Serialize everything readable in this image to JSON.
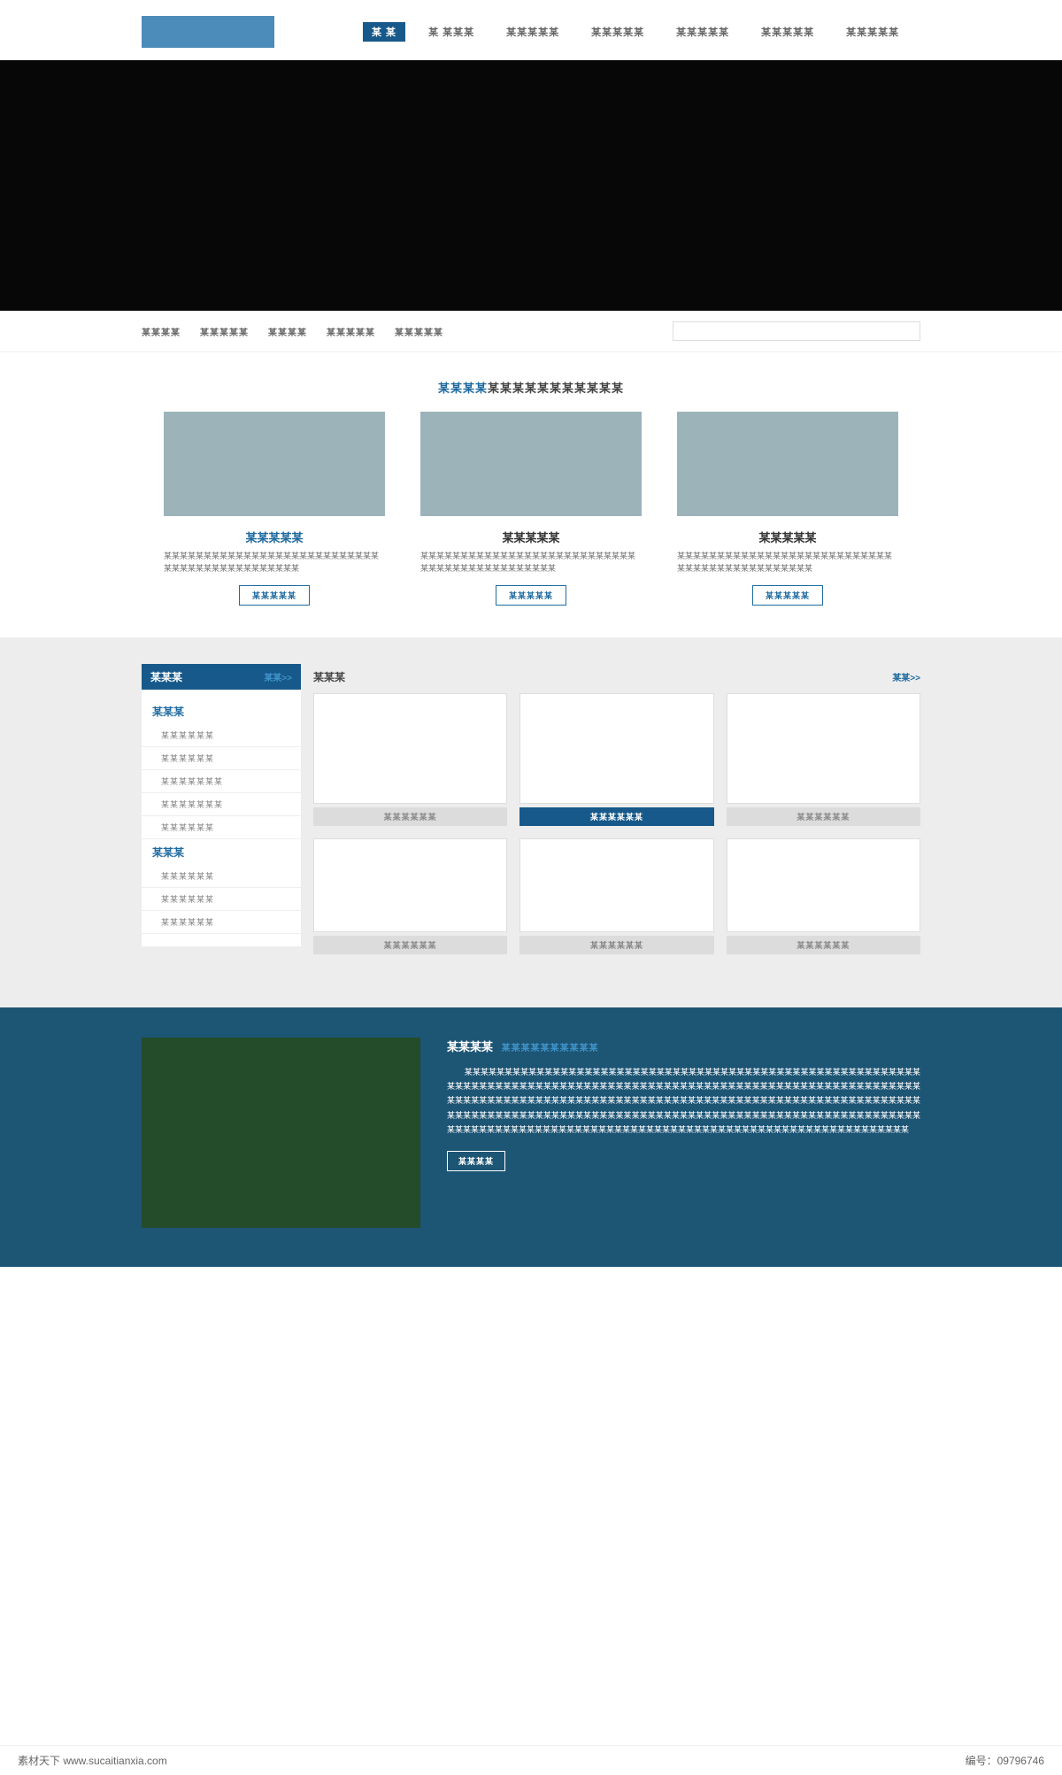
{
  "colors": {
    "logo_bg": "#4b8cba",
    "nav_active_bg": "#17598a",
    "hero_bg": "#070707",
    "accent": "#1e6aa0",
    "card_img_bg": "#9db3ba",
    "products_bg": "#ededed",
    "grid_label_bg": "#dcdcdc",
    "about_bg": "#1d5575",
    "about_img_bg": "#244c2b",
    "sub_accent": "#3f93c9"
  },
  "nav": {
    "items": [
      {
        "label": "某 某",
        "active": true
      },
      {
        "label": "某 某某某",
        "active": false
      },
      {
        "label": "某某某某某",
        "active": false
      },
      {
        "label": "某某某某某",
        "active": false
      },
      {
        "label": "某某某某某",
        "active": false
      },
      {
        "label": "某某某某某",
        "active": false
      },
      {
        "label": "某某某某某",
        "active": false
      }
    ]
  },
  "subnav": {
    "items": [
      {
        "label": "某某某某"
      },
      {
        "label": "某某某某某"
      },
      {
        "label": "某某某某"
      },
      {
        "label": "某某某某某"
      },
      {
        "label": "某某某某某"
      }
    ],
    "search_placeholder": ""
  },
  "section1": {
    "title_accent": "某某某某",
    "title_rest": "某某某某某某某某某某某",
    "cards": [
      {
        "title": "某某某某某",
        "link": true,
        "desc": "某某某某某某某某某某某某某某某某某某某某某某某某某某某某某某某某某某某某某某某某某某某某",
        "btn": "某某某某某"
      },
      {
        "title": "某某某某某",
        "link": false,
        "desc": "某某某某某某某某某某某某某某某某某某某某某某某某某某某某某某某某某某某某某某某某某某某某",
        "btn": "某某某某某"
      },
      {
        "title": "某某某某某",
        "link": false,
        "desc": "某某某某某某某某某某某某某某某某某某某某某某某某某某某某某某某某某某某某某某某某某某某某",
        "btn": "某某某某某"
      }
    ]
  },
  "products": {
    "sidebar": {
      "head_title": "某某某",
      "head_more": "某某>>",
      "groups": [
        {
          "cat": "某某某",
          "items": [
            "某某某某某某",
            "某某某某某某",
            "某某某某某某某",
            "某某某某某某某",
            "某某某某某某"
          ]
        },
        {
          "cat": "某某某",
          "items": [
            "某某某某某某",
            "某某某某某某",
            "某某某某某某"
          ]
        }
      ]
    },
    "grid": {
      "head_title": "某某某",
      "head_more": "某某>>",
      "items": [
        {
          "label": "某某某某某某",
          "active": false
        },
        {
          "label": "某某某某某某",
          "active": true
        },
        {
          "label": "某某某某某某",
          "active": false
        },
        {
          "label": "某某某某某某",
          "active": false
        },
        {
          "label": "某某某某某某",
          "active": false
        },
        {
          "label": "某某某某某某",
          "active": false
        }
      ]
    }
  },
  "about": {
    "title_main": "某某某某",
    "title_sub": "某某某某某某某某某某",
    "text": "某某某某某某某某某某某某某某某某某某某某某某某某某某某某某某某某某某某某某某某某某某某某某某某某某某某某某某某某某某某某某某某某某某某某某某某某某某某某某某某某某某某某某某某某某某某某某某某某某某某某某某某某某某某某某某某某某某某某某某某某某某某某某某某某某某某某某某某某某某某某某某某某某某某某某某某某某某某某某某某某某某某某某某某某某某某某某某某某某某某某某某某某某某某某某某某某某某某某某某某某某某某某某某某某某某某某某某某某某某某某某某某某某某某某某某某某某某某某某某某某某某某某某某某某某某某某某某某某某某某某某某某某某某某某某某某某某某某某某某某某某某某某某某某某某某某某",
    "btn": "某某某某"
  },
  "footer": {
    "left": "素材天下 www.sucaitianxia.com",
    "right": "编号：09796746"
  }
}
